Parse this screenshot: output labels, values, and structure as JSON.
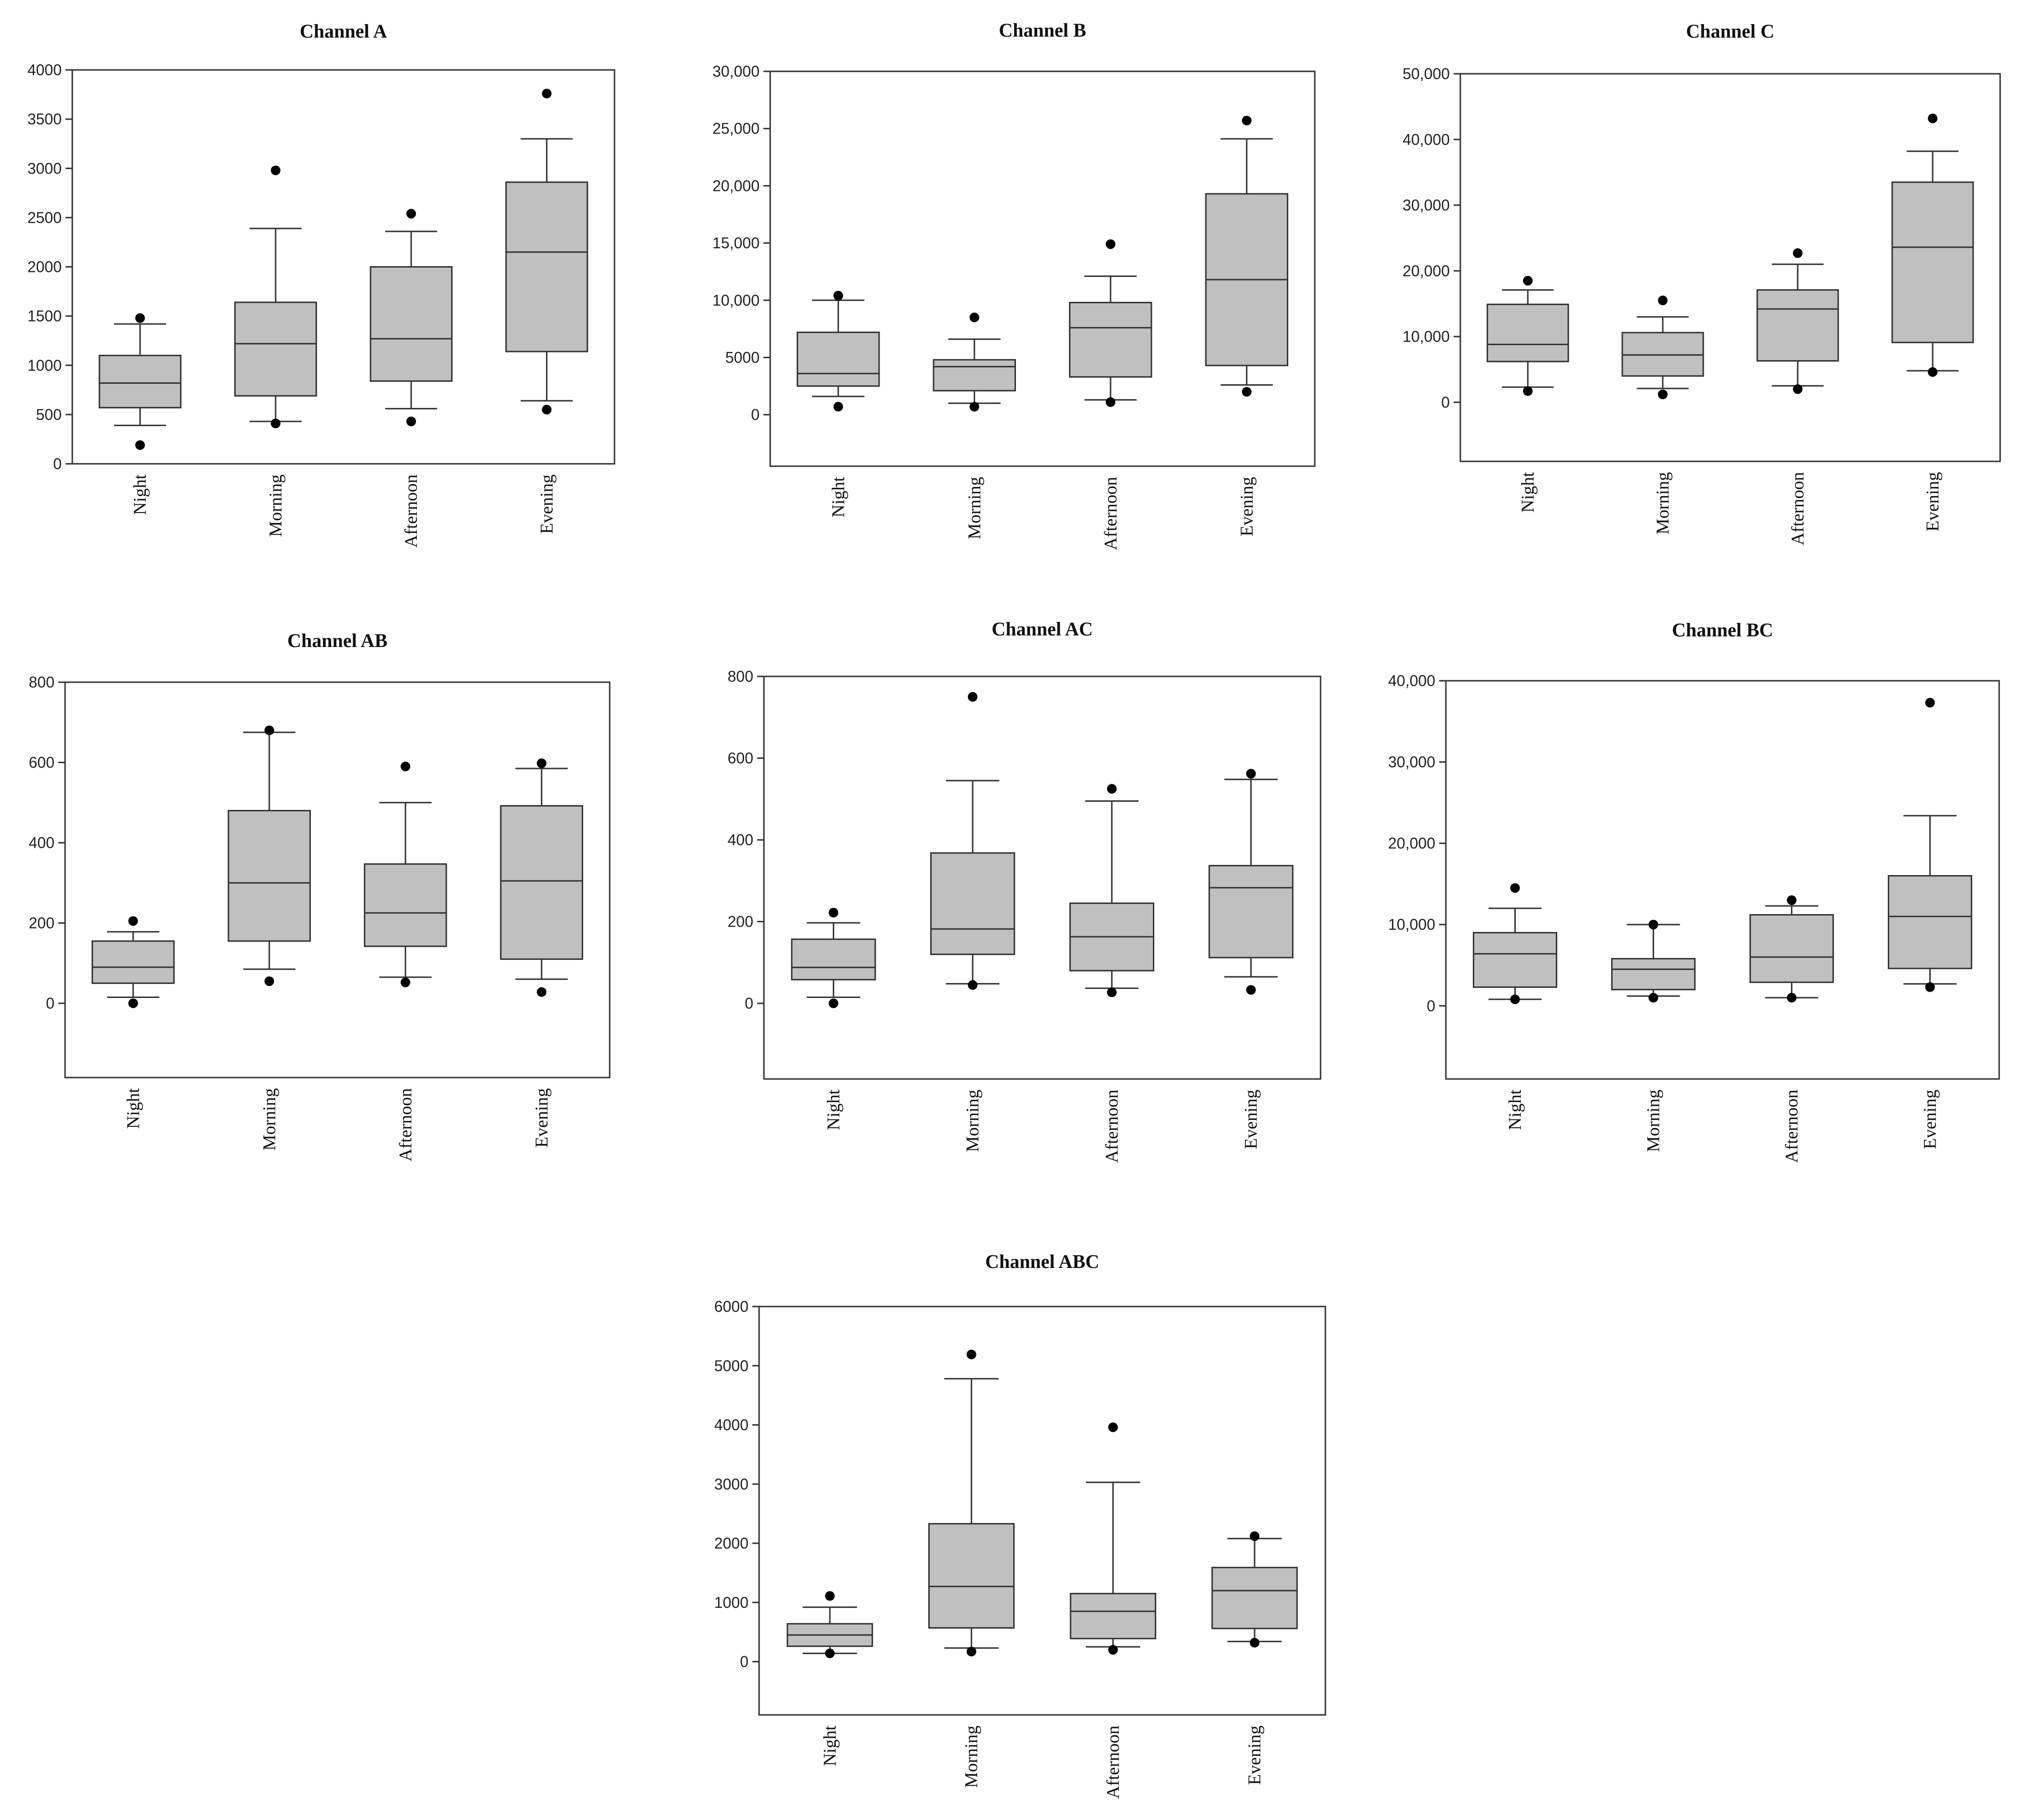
{
  "colors": {
    "box_fill": "#c0c0c0",
    "stroke": "#333333",
    "outlier": "#000000",
    "background": "#ffffff"
  },
  "chart_data": [
    {
      "type": "box",
      "title": "Channel A",
      "categories": [
        "Night",
        "Morning",
        "Afternoon",
        "Evening"
      ],
      "ylim": [
        0,
        4000
      ],
      "yticks": [
        0,
        500,
        1000,
        1500,
        2000,
        2500,
        3000,
        3500,
        4000
      ],
      "ytick_labels": [
        "0",
        "500",
        "1000",
        "1500",
        "2000",
        "2500",
        "3000",
        "3500",
        "4000"
      ],
      "boxes": [
        {
          "q1": 570,
          "median": 820,
          "q3": 1100,
          "whisker_low": 390,
          "whisker_high": 1420,
          "outliers": [
            190,
            1480
          ]
        },
        {
          "q1": 690,
          "median": 1220,
          "q3": 1640,
          "whisker_low": 430,
          "whisker_high": 2390,
          "outliers": [
            410,
            2980
          ]
        },
        {
          "q1": 840,
          "median": 1270,
          "q3": 2000,
          "whisker_low": 560,
          "whisker_high": 2360,
          "outliers": [
            430,
            2540
          ]
        },
        {
          "q1": 1140,
          "median": 2150,
          "q3": 2860,
          "whisker_low": 640,
          "whisker_high": 3300,
          "outliers": [
            550,
            3760
          ]
        }
      ]
    },
    {
      "type": "box",
      "title": "Channel B",
      "categories": [
        "Night",
        "Morning",
        "Afternoon",
        "Evening"
      ],
      "ylim": [
        -4500,
        30000
      ],
      "yticks": [
        0,
        5000,
        10000,
        15000,
        20000,
        25000,
        30000
      ],
      "ytick_labels": [
        "0",
        "5000",
        "10,000",
        "15,000",
        "20,000",
        "25,000",
        "30,000"
      ],
      "boxes": [
        {
          "q1": 2500,
          "median": 3600,
          "q3": 7200,
          "whisker_low": 1600,
          "whisker_high": 10000,
          "outliers": [
            700,
            10400
          ]
        },
        {
          "q1": 2100,
          "median": 4200,
          "q3": 4800,
          "whisker_low": 1000,
          "whisker_high": 6600,
          "outliers": [
            700,
            8500
          ]
        },
        {
          "q1": 3300,
          "median": 7600,
          "q3": 9800,
          "whisker_low": 1300,
          "whisker_high": 12100,
          "outliers": [
            1100,
            14900
          ]
        },
        {
          "q1": 4300,
          "median": 11800,
          "q3": 19300,
          "whisker_low": 2600,
          "whisker_high": 24100,
          "outliers": [
            2000,
            25700
          ]
        }
      ]
    },
    {
      "type": "box",
      "title": "Channel C",
      "categories": [
        "Night",
        "Morning",
        "Afternoon",
        "Evening"
      ],
      "ylim": [
        -9000,
        50000
      ],
      "yticks": [
        0,
        10000,
        20000,
        30000,
        40000,
        50000
      ],
      "ytick_labels": [
        "0",
        "10,000",
        "20,000",
        "30,000",
        "40,000",
        "50,000"
      ],
      "boxes": [
        {
          "q1": 6200,
          "median": 8800,
          "q3": 14900,
          "whisker_low": 2300,
          "whisker_high": 17100,
          "outliers": [
            1700,
            18500
          ]
        },
        {
          "q1": 4000,
          "median": 7200,
          "q3": 10600,
          "whisker_low": 2100,
          "whisker_high": 13000,
          "outliers": [
            1200,
            15500
          ]
        },
        {
          "q1": 6300,
          "median": 14200,
          "q3": 17100,
          "whisker_low": 2500,
          "whisker_high": 21000,
          "outliers": [
            2000,
            22700
          ]
        },
        {
          "q1": 9100,
          "median": 23600,
          "q3": 33500,
          "whisker_low": 4800,
          "whisker_high": 38200,
          "outliers": [
            4600,
            43200
          ]
        }
      ]
    },
    {
      "type": "box",
      "title": "Channel AB",
      "categories": [
        "Night",
        "Morning",
        "Afternoon",
        "Evening"
      ],
      "ylim": [
        -185,
        800
      ],
      "yticks": [
        0,
        200,
        400,
        600,
        800
      ],
      "ytick_labels": [
        "0",
        "200",
        "400",
        "600",
        "800"
      ],
      "boxes": [
        {
          "q1": 50,
          "median": 90,
          "q3": 155,
          "whisker_low": 15,
          "whisker_high": 178,
          "outliers": [
            0,
            205
          ]
        },
        {
          "q1": 155,
          "median": 300,
          "q3": 480,
          "whisker_low": 85,
          "whisker_high": 675,
          "outliers": [
            55,
            680
          ]
        },
        {
          "q1": 142,
          "median": 225,
          "q3": 347,
          "whisker_low": 65,
          "whisker_high": 500,
          "outliers": [
            52,
            590
          ]
        },
        {
          "q1": 110,
          "median": 305,
          "q3": 492,
          "whisker_low": 60,
          "whisker_high": 585,
          "outliers": [
            28,
            598
          ]
        }
      ]
    },
    {
      "type": "box",
      "title": "Channel AC",
      "categories": [
        "Night",
        "Morning",
        "Afternoon",
        "Evening"
      ],
      "ylim": [
        -185,
        800
      ],
      "yticks": [
        0,
        200,
        400,
        600,
        800
      ],
      "ytick_labels": [
        "0",
        "200",
        "400",
        "600",
        "800"
      ],
      "boxes": [
        {
          "q1": 58,
          "median": 88,
          "q3": 157,
          "whisker_low": 15,
          "whisker_high": 197,
          "outliers": [
            0,
            222
          ]
        },
        {
          "q1": 120,
          "median": 182,
          "q3": 368,
          "whisker_low": 48,
          "whisker_high": 545,
          "outliers": [
            45,
            750
          ]
        },
        {
          "q1": 80,
          "median": 163,
          "q3": 245,
          "whisker_low": 37,
          "whisker_high": 495,
          "outliers": [
            27,
            525
          ]
        },
        {
          "q1": 112,
          "median": 283,
          "q3": 337,
          "whisker_low": 65,
          "whisker_high": 548,
          "outliers": [
            33,
            562
          ]
        }
      ]
    },
    {
      "type": "box",
      "title": "Channel BC",
      "categories": [
        "Night",
        "Morning",
        "Afternoon",
        "Evening"
      ],
      "ylim": [
        -9000,
        40000
      ],
      "yticks": [
        0,
        10000,
        20000,
        30000,
        40000
      ],
      "ytick_labels": [
        "0",
        "10,000",
        "20,000",
        "30,000",
        "40,000"
      ],
      "boxes": [
        {
          "q1": 2300,
          "median": 6400,
          "q3": 9000,
          "whisker_low": 800,
          "whisker_high": 12000,
          "outliers": [
            800,
            14500
          ]
        },
        {
          "q1": 2000,
          "median": 4500,
          "q3": 5800,
          "whisker_low": 1200,
          "whisker_high": 10000,
          "outliers": [
            1000,
            10000
          ]
        },
        {
          "q1": 2900,
          "median": 6000,
          "q3": 11200,
          "whisker_low": 1000,
          "whisker_high": 12300,
          "outliers": [
            1000,
            13000
          ]
        },
        {
          "q1": 4600,
          "median": 11000,
          "q3": 16000,
          "whisker_low": 2700,
          "whisker_high": 23400,
          "outliers": [
            2300,
            37300
          ]
        }
      ]
    },
    {
      "type": "box",
      "title": "Channel ABC",
      "categories": [
        "Night",
        "Morning",
        "Afternoon",
        "Evening"
      ],
      "ylim": [
        -900,
        6000
      ],
      "yticks": [
        0,
        1000,
        2000,
        3000,
        4000,
        5000,
        6000
      ],
      "ytick_labels": [
        "0",
        "1000",
        "2000",
        "3000",
        "4000",
        "5000",
        "6000"
      ],
      "boxes": [
        {
          "q1": 260,
          "median": 450,
          "q3": 640,
          "whisker_low": 140,
          "whisker_high": 920,
          "outliers": [
            140,
            1110
          ]
        },
        {
          "q1": 570,
          "median": 1270,
          "q3": 2330,
          "whisker_low": 230,
          "whisker_high": 4780,
          "outliers": [
            170,
            5190
          ]
        },
        {
          "q1": 390,
          "median": 850,
          "q3": 1150,
          "whisker_low": 250,
          "whisker_high": 3030,
          "outliers": [
            200,
            3960
          ]
        },
        {
          "q1": 560,
          "median": 1200,
          "q3": 1590,
          "whisker_low": 340,
          "whisker_high": 2080,
          "outliers": [
            320,
            2120
          ]
        }
      ]
    }
  ]
}
